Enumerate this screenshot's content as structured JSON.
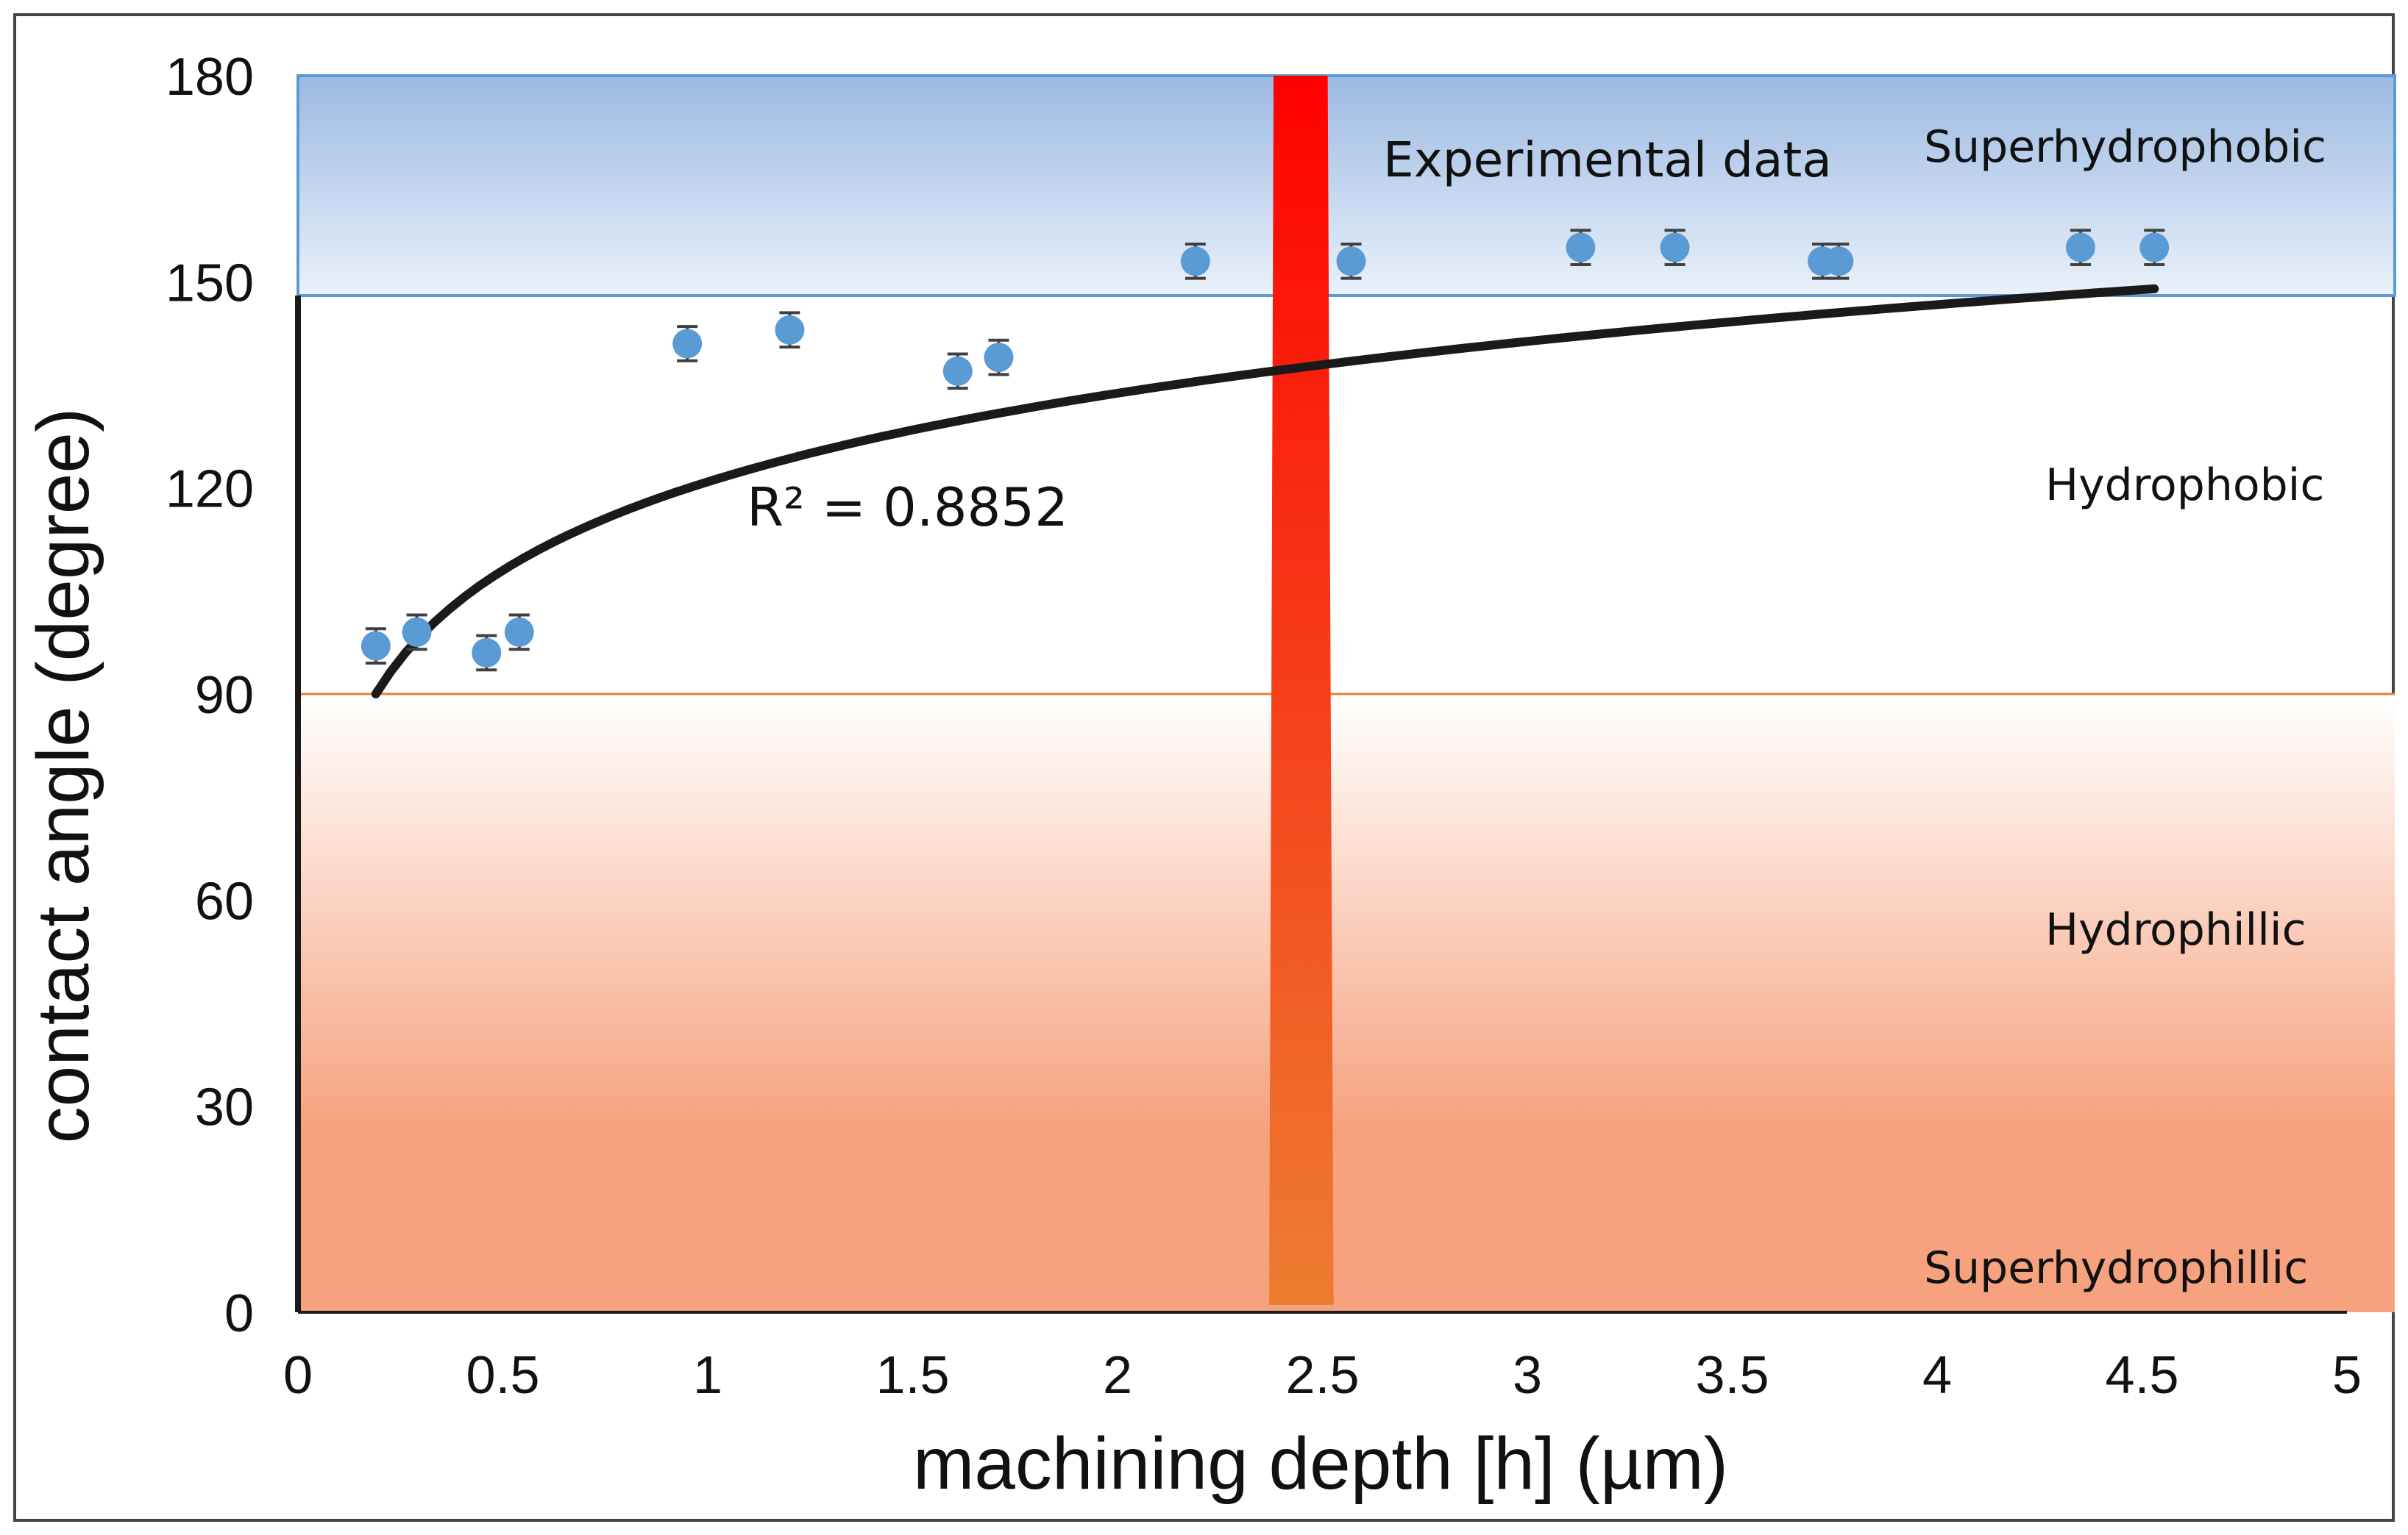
{
  "chart_data": {
    "type": "scatter",
    "title": "",
    "xlabel": "machining depth [h] (µm)",
    "ylabel": "contact angle (degree)",
    "xlim": [
      0,
      5
    ],
    "ylim": [
      0,
      180
    ],
    "x_ticks": [
      "0",
      "0.5",
      "1",
      "1.5",
      "2",
      "2.5",
      "3",
      "3.5",
      "4",
      "4.5",
      "5"
    ],
    "y_ticks": [
      "0",
      "30",
      "60",
      "90",
      "120",
      "150",
      "180"
    ],
    "series": [
      {
        "name": "Experimental data",
        "x": [
          0.19,
          0.29,
          0.46,
          0.54,
          0.95,
          1.2,
          1.61,
          1.71,
          2.19,
          2.57,
          3.13,
          3.36,
          3.72,
          3.76,
          4.35,
          4.53
        ],
        "y": [
          97,
          99,
          96,
          99,
          141,
          143,
          137,
          139,
          153,
          153,
          155,
          155,
          153,
          153,
          155,
          155
        ],
        "error": 2.5
      }
    ],
    "trendline": {
      "type": "logarithmic",
      "r_squared_label": "R² = 0.8852",
      "x_start": 0.19,
      "x_end": 4.53,
      "x_ref": 0.19,
      "y_ref": 90,
      "coefficient": 18.6
    },
    "regions": [
      {
        "label": "Superhydrophobic",
        "from": 148,
        "to": 180,
        "color_top": "#9bb9e2",
        "color_bottom": "#eaf1fa",
        "border": "#5b9bd5"
      },
      {
        "label": "Hydrophobic",
        "from": 90,
        "to": 148
      },
      {
        "label": "Hydrophillic",
        "from": 0,
        "to": 90,
        "color_top": "#ffffff",
        "color_bottom": "#f6a27f",
        "border": "#ed7d31"
      },
      {
        "label": "Superhydrophillic",
        "from": 0,
        "to": 0
      }
    ],
    "threshold_band": {
      "x_from": 2.37,
      "x_to": 2.52,
      "color_top": "#ff0000",
      "color_bottom": "#ed7d31"
    },
    "annotations": {
      "experimental_data": "Experimental data",
      "superhydrophobic": "Superhydrophobic",
      "hydrophobic": "Hydrophobic",
      "hydrophillic": "Hydrophillic",
      "superhydrophillic": "Superhydrophillic"
    },
    "colors": {
      "marker": "#5b9bd5",
      "errorbar": "#404040",
      "trendline": "#1a1a1a",
      "frame": "#1a1a1a"
    }
  }
}
